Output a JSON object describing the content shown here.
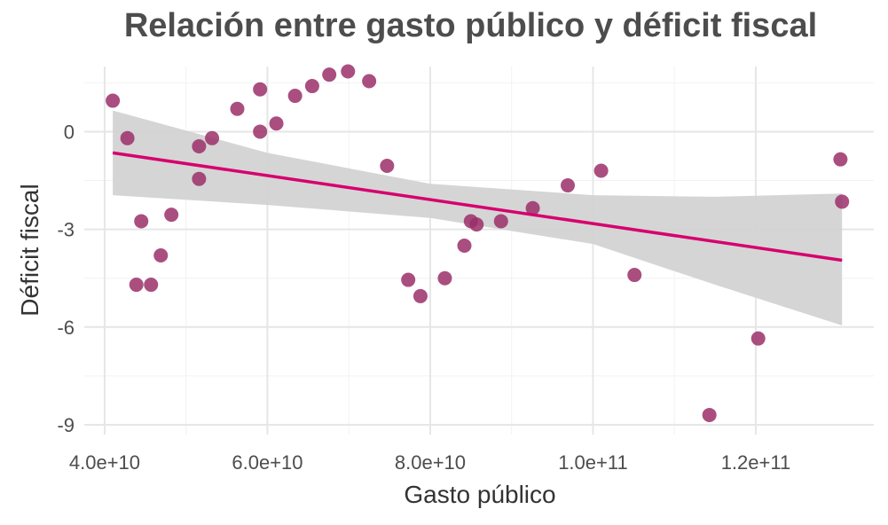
{
  "chart_data": {
    "type": "scatter",
    "title": "Relación entre gasto público y déficit fiscal",
    "xlabel": "Gasto público",
    "ylabel": "Déficit fiscal",
    "xlim": [
      37500000000,
      134500000000
    ],
    "ylim": [
      -9.3,
      2.0
    ],
    "x_ticks": [
      40000000000,
      60000000000,
      80000000000,
      100000000000,
      120000000000
    ],
    "x_tick_labels": [
      "4.0e+10",
      "6.0e+10",
      "8.0e+10",
      "1.0e+11",
      "1.2e+11"
    ],
    "y_ticks": [
      -9,
      -6,
      -3,
      0
    ],
    "y_tick_labels": [
      "-9",
      "-6",
      "-3",
      "0"
    ],
    "grid": true,
    "points_color": "#9b2f6a",
    "line_color": "#d6006e",
    "band_color": "#d3d3d3",
    "points": [
      {
        "x": 41000000000,
        "y": 0.95
      },
      {
        "x": 42800000000,
        "y": -0.2
      },
      {
        "x": 43900000000,
        "y": -4.7
      },
      {
        "x": 44500000000,
        "y": -2.75
      },
      {
        "x": 45700000000,
        "y": -4.7
      },
      {
        "x": 46900000000,
        "y": -3.8
      },
      {
        "x": 48200000000,
        "y": -2.55
      },
      {
        "x": 51600000000,
        "y": -0.45
      },
      {
        "x": 51600000000,
        "y": -1.45
      },
      {
        "x": 53200000000,
        "y": -0.2
      },
      {
        "x": 56300000000,
        "y": 0.7
      },
      {
        "x": 59100000000,
        "y": 1.3
      },
      {
        "x": 59100000000,
        "y": 0.0
      },
      {
        "x": 61100000000,
        "y": 0.25
      },
      {
        "x": 63400000000,
        "y": 1.1
      },
      {
        "x": 65500000000,
        "y": 1.4
      },
      {
        "x": 67600000000,
        "y": 1.75
      },
      {
        "x": 69900000000,
        "y": 1.85
      },
      {
        "x": 72500000000,
        "y": 1.55
      },
      {
        "x": 74700000000,
        "y": -1.05
      },
      {
        "x": 77300000000,
        "y": -4.55
      },
      {
        "x": 78800000000,
        "y": -5.05
      },
      {
        "x": 81800000000,
        "y": -4.5
      },
      {
        "x": 84200000000,
        "y": -3.5
      },
      {
        "x": 85000000000,
        "y": -2.75
      },
      {
        "x": 85700000000,
        "y": -2.85
      },
      {
        "x": 88700000000,
        "y": -2.75
      },
      {
        "x": 92600000000,
        "y": -2.35
      },
      {
        "x": 96900000000,
        "y": -1.65
      },
      {
        "x": 101000000000,
        "y": -1.2
      },
      {
        "x": 105100000000,
        "y": -4.4
      },
      {
        "x": 114300000000,
        "y": -8.7
      },
      {
        "x": 120300000000,
        "y": -6.35
      },
      {
        "x": 130400000000,
        "y": -0.85
      },
      {
        "x": 130600000000,
        "y": -2.15
      }
    ],
    "fit_line": {
      "x": [
        41000000000,
        130600000000
      ],
      "y": [
        -0.65,
        -3.95
      ]
    },
    "confidence_band": {
      "x": [
        41000000000,
        60000000000,
        80000000000,
        100000000000,
        115000000000,
        130600000000
      ],
      "upper": [
        0.65,
        -0.65,
        -1.6,
        -1.95,
        -2.0,
        -1.9
      ],
      "lower": [
        -1.95,
        -2.25,
        -2.65,
        -3.45,
        -4.7,
        -5.95
      ]
    }
  }
}
